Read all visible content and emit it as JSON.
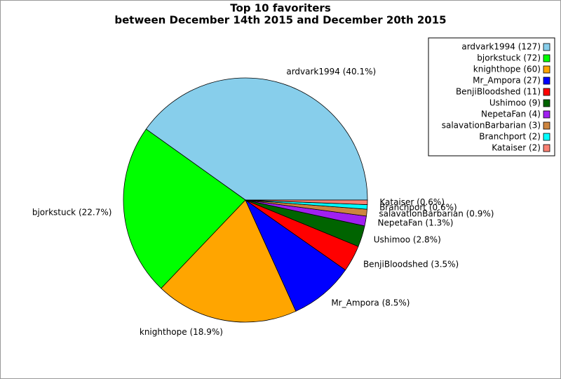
{
  "chart_data": {
    "type": "pie",
    "title": [
      "Top 10 favoriters",
      "between December 14th 2015 and December 20th 2015"
    ],
    "values": [
      40.1,
      22.7,
      18.9,
      8.5,
      3.5,
      2.8,
      1.3,
      0.9,
      0.6,
      0.6
    ],
    "value_labels": [
      "ardvark1994 (40.1%)",
      "bjorkstuck (22.7%)",
      "knighthope (18.9%)",
      "Mr_Ampora (8.5%)",
      "BenjiBloodshed (3.5%)",
      "Ushimoo (2.8%)",
      "NepetaFan (1.3%)",
      "salavationBarbarian (0.9%)",
      "Branchport (0.6%)",
      "Kataiser (0.6%)"
    ],
    "legend_labels": [
      "ardvark1994 (127)",
      "bjorkstuck (72)",
      "knighthope (60)",
      "Mr_Ampora (27)",
      "BenjiBloodshed (11)",
      "Ushimoo (9)",
      "NepetaFan (4)",
      "salavationBarbarian (3)",
      "Branchport (2)",
      "Kataiser (2)"
    ],
    "colors": [
      "#87ceeb",
      "#00ff00",
      "#ffa500",
      "#0000ff",
      "#ff0000",
      "#006400",
      "#a020f0",
      "#cd853f",
      "#00ffff",
      "#fa8072"
    ],
    "legend_position": "upper right"
  }
}
